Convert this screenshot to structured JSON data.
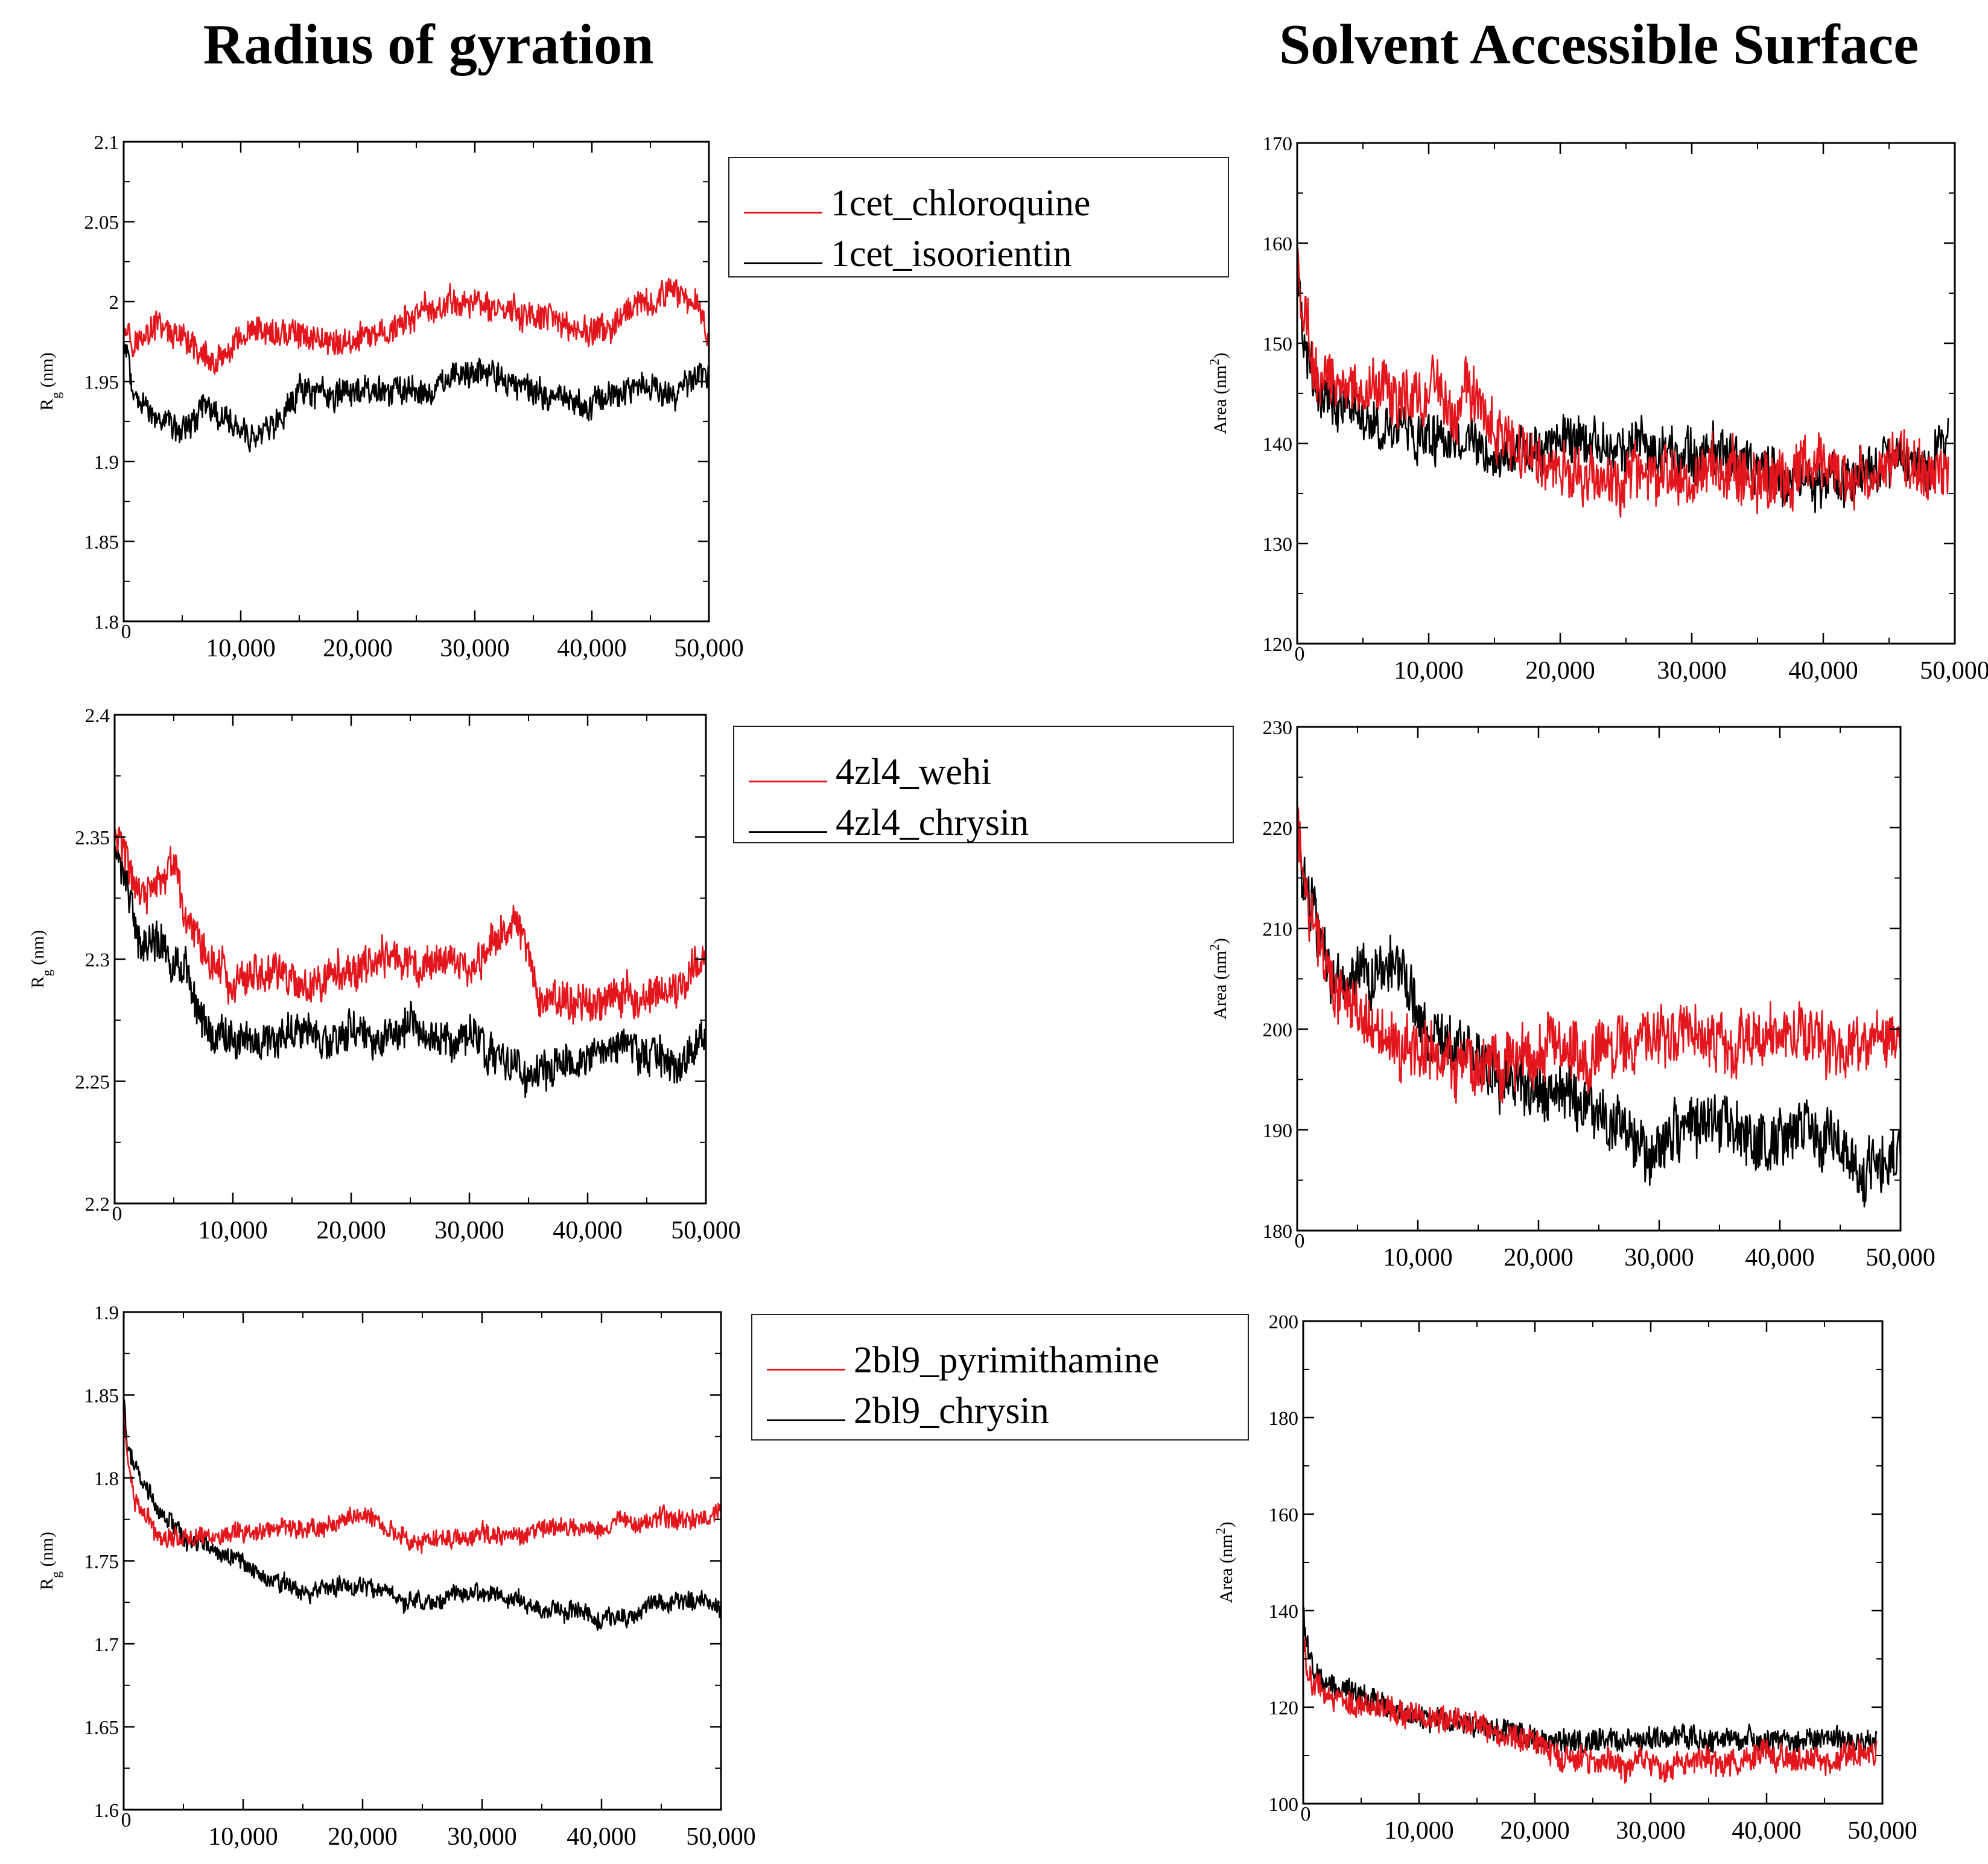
{
  "titles": {
    "left": "Radius of gyration",
    "right": "Solvent Accessible Surface"
  },
  "colors": {
    "red": "#e4161d",
    "black": "#000000"
  },
  "legends": [
    [
      {
        "label": "1cet_chloroquine",
        "color": "#e4161d"
      },
      {
        "label": "1cet_isoorientin",
        "color": "#000000"
      }
    ],
    [
      {
        "label": "4zl4_wehi",
        "color": "#e4161d"
      },
      {
        "label": "4zl4_chrysin",
        "color": "#000000"
      }
    ],
    [
      {
        "label": "2bl9_pyrimithamine",
        "color": "#e4161d"
      },
      {
        "label": "2bl9_chrysin",
        "color": "#000000"
      }
    ]
  ],
  "chart_data": [
    {
      "id": "rg-1cet",
      "type": "line",
      "ylabel_main": "R",
      "ylabel_sub": "g",
      "ylabel_rest": " (nm)",
      "xlim": [
        0,
        50000
      ],
      "ylim": [
        1.8,
        2.1
      ],
      "xticks": [
        0,
        10000,
        20000,
        30000,
        40000,
        50000
      ],
      "xticklabels": [
        "0",
        "10,000",
        "20,000",
        "30,000",
        "40,000",
        "50,000"
      ],
      "yticks": [
        1.8,
        1.85,
        1.9,
        1.95,
        2.0,
        2.05,
        2.1
      ],
      "yticklabels": [
        "1.8",
        "1.85",
        "1.9",
        "1.95",
        "2",
        "2.05",
        "2.1"
      ],
      "series": [
        {
          "name": "1cet_chloroquine",
          "color": "#e4161d",
          "amp": 0.008,
          "x": [
            0,
            1000,
            3000,
            5000,
            6000,
            8000,
            10000,
            12000,
            15000,
            18000,
            20000,
            22000,
            25000,
            28000,
            30000,
            32000,
            35000,
            38000,
            40000,
            42000,
            45000,
            47000,
            49000,
            50000
          ],
          "y": [
            1.99,
            1.975,
            1.985,
            1.975,
            1.97,
            1.96,
            1.975,
            1.98,
            1.98,
            1.975,
            1.975,
            1.98,
            1.99,
            2.0,
            2.0,
            1.995,
            1.99,
            1.985,
            1.98,
            1.985,
            2.0,
            2.005,
            2.0,
            1.98
          ]
        },
        {
          "name": "1cet_isoorientin",
          "color": "#000000",
          "amp": 0.008,
          "x": [
            0,
            1000,
            3000,
            5000,
            7000,
            9000,
            11000,
            13000,
            15000,
            18000,
            20000,
            22000,
            25000,
            28000,
            30000,
            32000,
            35000,
            38000,
            40000,
            42000,
            45000,
            47000,
            49000,
            50000
          ],
          "y": [
            1.975,
            1.94,
            1.925,
            1.92,
            1.935,
            1.925,
            1.915,
            1.925,
            1.945,
            1.94,
            1.945,
            1.945,
            1.945,
            1.95,
            1.955,
            1.95,
            1.945,
            1.94,
            1.935,
            1.945,
            1.945,
            1.94,
            1.95,
            1.95
          ]
        }
      ]
    },
    {
      "id": "sas-1cet",
      "type": "line",
      "ylabel_main": "Area (nm",
      "ylabel_sup": "2",
      "ylabel_rest": ")",
      "xlim": [
        0,
        50000
      ],
      "ylim": [
        120,
        170
      ],
      "xticks": [
        0,
        10000,
        20000,
        30000,
        40000,
        50000
      ],
      "xticklabels": [
        "0",
        "10,000",
        "20,000",
        "30,000",
        "40,000",
        "50,000"
      ],
      "yticks": [
        120,
        130,
        140,
        150,
        160,
        170
      ],
      "yticklabels": [
        "120",
        "130",
        "140",
        "150",
        "160",
        "170"
      ],
      "series": [
        {
          "name": "1cet_isoorientin",
          "color": "#000000",
          "amp": 2.2,
          "x": [
            0,
            500,
            1500,
            3000,
            6000,
            9000,
            12000,
            15000,
            18000,
            21000,
            24000,
            27000,
            30000,
            33000,
            36000,
            39000,
            42000,
            45000,
            48000,
            49500
          ],
          "y": [
            157,
            150,
            145,
            144,
            142,
            141,
            140,
            139,
            139,
            140,
            140,
            139,
            139,
            139,
            137,
            136,
            137,
            138,
            138,
            141
          ]
        },
        {
          "name": "1cet_chloroquine",
          "color": "#e4161d",
          "amp": 2.6,
          "x": [
            0,
            500,
            1500,
            3000,
            6000,
            9000,
            12000,
            13000,
            15000,
            18000,
            21000,
            24000,
            27000,
            30000,
            33000,
            36000,
            39000,
            42000,
            45000,
            48000,
            49500
          ],
          "y": [
            160,
            152,
            147,
            146,
            145,
            145,
            144,
            146,
            141,
            138,
            137,
            136,
            137,
            137,
            137,
            137,
            138,
            137,
            138,
            138,
            137
          ]
        }
      ]
    },
    {
      "id": "rg-4zl4",
      "type": "line",
      "ylabel_main": "R",
      "ylabel_sub": "g",
      "ylabel_rest": " (nm)",
      "xlim": [
        0,
        50000
      ],
      "ylim": [
        2.2,
        2.4
      ],
      "xticks": [
        0,
        10000,
        20000,
        30000,
        40000,
        50000
      ],
      "xticklabels": [
        "0",
        "10,000",
        "20,000",
        "30,000",
        "40,000",
        "50,000"
      ],
      "yticks": [
        2.2,
        2.25,
        2.3,
        2.35,
        2.4
      ],
      "yticklabels": [
        "2.2",
        "2.25",
        "2.3",
        "2.35",
        "2.4"
      ],
      "series": [
        {
          "name": "4zl4_chrysin",
          "color": "#000000",
          "amp": 0.007,
          "x": [
            0,
            1000,
            2000,
            4000,
            6000,
            8000,
            10000,
            13000,
            16000,
            18000,
            20000,
            22000,
            25000,
            28000,
            30000,
            32000,
            34000,
            36000,
            38000,
            40000,
            43000,
            46000,
            48000,
            50000
          ],
          "y": [
            2.345,
            2.33,
            2.31,
            2.305,
            2.295,
            2.27,
            2.27,
            2.265,
            2.27,
            2.265,
            2.275,
            2.265,
            2.275,
            2.265,
            2.27,
            2.26,
            2.255,
            2.255,
            2.26,
            2.26,
            2.265,
            2.26,
            2.255,
            2.27
          ]
        },
        {
          "name": "4zl4_wehi",
          "color": "#e4161d",
          "amp": 0.007,
          "x": [
            0,
            1000,
            2000,
            4000,
            5000,
            6000,
            8000,
            10000,
            13000,
            16000,
            19000,
            22000,
            25000,
            28000,
            31000,
            33000,
            34000,
            35000,
            36000,
            38000,
            40000,
            42000,
            45000,
            48000,
            50000
          ],
          "y": [
            2.35,
            2.34,
            2.325,
            2.33,
            2.34,
            2.32,
            2.3,
            2.29,
            2.295,
            2.29,
            2.295,
            2.3,
            2.3,
            2.3,
            2.3,
            2.31,
            2.315,
            2.3,
            2.285,
            2.28,
            2.28,
            2.285,
            2.285,
            2.29,
            2.305
          ]
        }
      ]
    },
    {
      "id": "sas-4zl4",
      "type": "line",
      "ylabel_main": "Area (nm",
      "ylabel_sup": "2",
      "ylabel_rest": ")",
      "xlim": [
        0,
        50000
      ],
      "ylim": [
        180,
        230
      ],
      "xticks": [
        0,
        10000,
        20000,
        30000,
        40000,
        50000
      ],
      "xticklabels": [
        "0",
        "10,000",
        "20,000",
        "30,000",
        "40,000",
        "50,000"
      ],
      "yticks": [
        180,
        190,
        200,
        210,
        220,
        230
      ],
      "yticklabels": [
        "180",
        "190",
        "200",
        "210",
        "220",
        "230"
      ],
      "series": [
        {
          "name": "4zl4_chrysin",
          "color": "#000000",
          "amp": 2.6,
          "x": [
            0,
            1000,
            3000,
            5000,
            7000,
            8000,
            10000,
            13000,
            16000,
            19000,
            22000,
            25000,
            28000,
            30000,
            33000,
            36000,
            39000,
            42000,
            45000,
            47000,
            50000
          ],
          "y": [
            220,
            212,
            206,
            206,
            206,
            207,
            201,
            198,
            196,
            194,
            194,
            192,
            189,
            188,
            191,
            190,
            189,
            190,
            188,
            186,
            188
          ]
        },
        {
          "name": "4zl4_wehi",
          "color": "#e4161d",
          "amp": 2.6,
          "x": [
            0,
            1000,
            3000,
            5000,
            7000,
            9000,
            12000,
            15000,
            18000,
            21000,
            24000,
            27000,
            30000,
            33000,
            36000,
            39000,
            42000,
            45000,
            48000,
            50000
          ],
          "y": [
            220,
            212,
            205,
            201,
            199,
            198,
            197,
            196,
            197,
            198,
            198,
            198,
            200,
            199,
            198,
            199,
            199,
            198,
            200,
            199
          ]
        }
      ]
    },
    {
      "id": "rg-2bl9",
      "type": "line",
      "ylabel_main": "R",
      "ylabel_sub": "g",
      "ylabel_rest": " (nm)",
      "xlim": [
        0,
        50000
      ],
      "ylim": [
        1.6,
        1.9
      ],
      "xticks": [
        0,
        10000,
        20000,
        30000,
        40000,
        50000
      ],
      "xticklabels": [
        "0",
        "10,000",
        "20,000",
        "30,000",
        "40,000",
        "50,000"
      ],
      "yticks": [
        1.6,
        1.65,
        1.7,
        1.75,
        1.8,
        1.85,
        1.9
      ],
      "yticklabels": [
        "1.6",
        "1.65",
        "1.7",
        "1.75",
        "1.8",
        "1.85",
        "1.9"
      ],
      "series": [
        {
          "name": "2bl9_chrysin",
          "color": "#000000",
          "amp": 0.005,
          "x": [
            0,
            300,
            1000,
            2000,
            3000,
            5000,
            8000,
            10000,
            12000,
            15000,
            18000,
            20000,
            22000,
            25000,
            28000,
            30000,
            33000,
            35000,
            38000,
            40000,
            42000,
            45000,
            48000,
            50000
          ],
          "y": [
            1.85,
            1.82,
            1.805,
            1.795,
            1.78,
            1.765,
            1.755,
            1.75,
            1.74,
            1.73,
            1.735,
            1.735,
            1.73,
            1.725,
            1.73,
            1.73,
            1.725,
            1.72,
            1.72,
            1.715,
            1.715,
            1.725,
            1.725,
            1.72
          ]
        },
        {
          "name": "2bl9_pyrimithamine",
          "color": "#e4161d",
          "amp": 0.005,
          "x": [
            0,
            300,
            1000,
            2000,
            3000,
            5000,
            8000,
            10000,
            13000,
            16000,
            19000,
            20000,
            22000,
            25000,
            28000,
            30000,
            33000,
            35000,
            38000,
            40000,
            42000,
            44000,
            46000,
            48000,
            50000
          ],
          "y": [
            1.84,
            1.81,
            1.785,
            1.775,
            1.765,
            1.765,
            1.765,
            1.765,
            1.77,
            1.77,
            1.775,
            1.78,
            1.77,
            1.76,
            1.765,
            1.765,
            1.765,
            1.77,
            1.77,
            1.77,
            1.775,
            1.775,
            1.775,
            1.775,
            1.78
          ]
        }
      ]
    },
    {
      "id": "sas-2bl9",
      "type": "line",
      "ylabel_main": "Area (nm",
      "ylabel_sup": "2",
      "ylabel_rest": ")",
      "xlim": [
        0,
        50000
      ],
      "ylim": [
        100,
        200
      ],
      "xticks": [
        0,
        10000,
        20000,
        30000,
        40000,
        50000
      ],
      "xticklabels": [
        "0",
        "10,000",
        "20,000",
        "30,000",
        "40,000",
        "50,000"
      ],
      "yticks": [
        100,
        120,
        140,
        160,
        180,
        200
      ],
      "yticklabels": [
        "100",
        "120",
        "140",
        "160",
        "180",
        "200"
      ],
      "series": [
        {
          "name": "2bl9_chrysin",
          "color": "#000000",
          "amp": 2.2,
          "x": [
            0,
            300,
            1000,
            2000,
            4000,
            7000,
            10000,
            13000,
            16000,
            19000,
            22000,
            25000,
            28000,
            31000,
            34000,
            37000,
            40000,
            43000,
            46000,
            49500
          ],
          "y": [
            140,
            133,
            128,
            125,
            123,
            120,
            118,
            117,
            116,
            114,
            113,
            113,
            113,
            114,
            114,
            113,
            113,
            114,
            113,
            112
          ]
        },
        {
          "name": "2bl9_pyrimithamine",
          "color": "#e4161d",
          "amp": 2.4,
          "x": [
            0,
            300,
            1000,
            2000,
            4000,
            7000,
            10000,
            13000,
            16000,
            19000,
            22000,
            25000,
            28000,
            31000,
            34000,
            37000,
            40000,
            43000,
            46000,
            49500
          ],
          "y": [
            135,
            128,
            124,
            122,
            121,
            120,
            118,
            117,
            116,
            113,
            110,
            109,
            108,
            108,
            109,
            108,
            110,
            109,
            109,
            111
          ]
        }
      ]
    }
  ]
}
